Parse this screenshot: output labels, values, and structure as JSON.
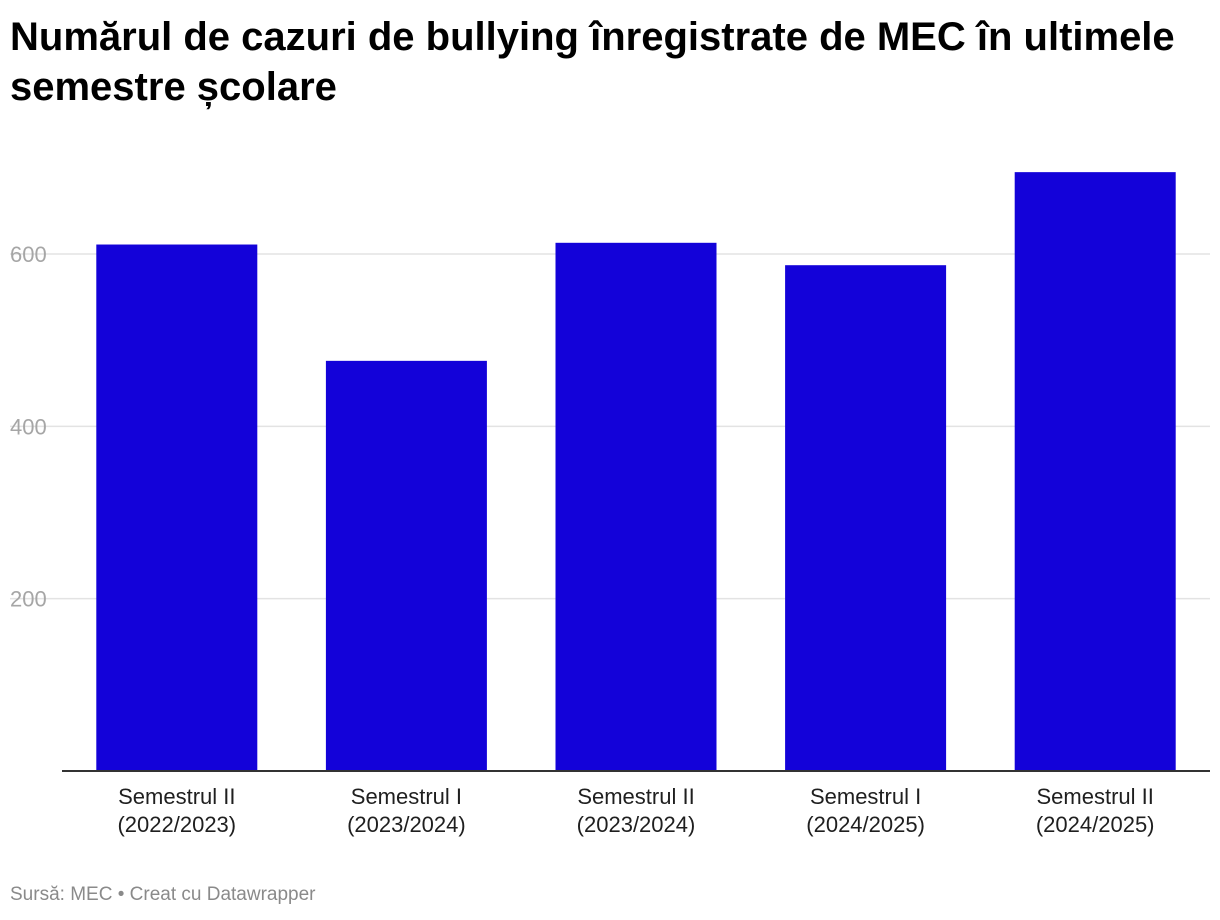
{
  "chart_data": {
    "type": "bar",
    "title": "Numărul de cazuri de bullying înregistrate de MEC în ultimele semestre școlare",
    "categories": [
      [
        "Semestrul II",
        "(2022/2023)"
      ],
      [
        "Semestrul I",
        "(2023/2024)"
      ],
      [
        "Semestrul II",
        "(2023/2024)"
      ],
      [
        "Semestrul I",
        "(2024/2025)"
      ],
      [
        "Semestrul II",
        "(2024/2025)"
      ]
    ],
    "values": [
      611,
      476,
      613,
      587,
      695
    ],
    "yticks": [
      200,
      400,
      600
    ],
    "ylim": [
      0,
      700
    ],
    "grid": true,
    "bar_color": "#1302d9"
  },
  "footer": {
    "source": "Sursă: MEC",
    "separator": "•",
    "credit": "Creat cu Datawrapper"
  }
}
